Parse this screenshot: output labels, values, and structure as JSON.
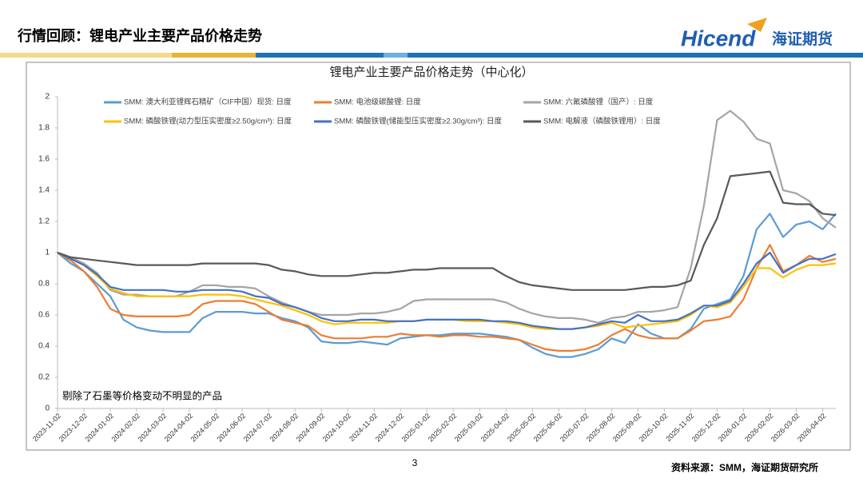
{
  "header": {
    "title": "行情回顾：锂电产业主要产品价格走势",
    "logo_text": "Hicend",
    "logo_cn": "海证期货"
  },
  "page_number": "3",
  "source": "资料来源：SMM，海证期货研究所",
  "chart_data": {
    "type": "line",
    "title": "锂电产业主要产品价格走势（中心化）",
    "annotation": "剔除了石墨等价格变动不明显的产品",
    "categories": [
      "2023-11-02",
      null,
      "2023-12-02",
      null,
      "2024-01-02",
      null,
      "2024-02-02",
      null,
      "2024-03-02",
      null,
      "2024-04-02",
      null,
      "2024-05-02",
      null,
      "2024-06-02",
      null,
      "2024-07-02",
      null,
      "2024-08-02",
      null,
      "2024-09-02",
      null,
      "2024-10-02",
      null,
      "2024-11-02",
      null,
      "2024-12-02",
      null,
      "2025-01-02",
      null,
      "2025-02-02",
      null,
      "2025-03-02",
      null,
      "2025-04-02",
      null,
      "2025-05-02",
      null,
      "2025-06-02",
      null,
      "2025-07-02",
      null,
      "2025-08-02",
      null,
      "2025-09-02",
      null,
      "2025-10-02",
      null,
      "2025-11-02",
      null,
      "2025-12-02",
      null,
      "2026-01-02",
      null,
      "2026-02-02",
      null,
      "2026-03-02",
      null,
      "2026-04-02",
      null
    ],
    "ylim": [
      0,
      2
    ],
    "yticks": [
      0,
      0.2,
      0.4,
      0.6,
      0.8,
      1,
      1.2,
      1.4,
      1.6,
      1.8,
      2
    ],
    "grid": false,
    "series": [
      {
        "name": "SMM: 澳大利亚锂辉石精矿（CIF中国）现货: 日度",
        "color": "#5b9bd5",
        "values": [
          1.0,
          0.93,
          0.88,
          0.8,
          0.72,
          0.57,
          0.52,
          0.5,
          0.49,
          0.49,
          0.49,
          0.58,
          0.62,
          0.62,
          0.62,
          0.61,
          0.61,
          0.58,
          0.56,
          0.52,
          0.43,
          0.42,
          0.42,
          0.43,
          0.42,
          0.41,
          0.45,
          0.46,
          0.47,
          0.47,
          0.48,
          0.48,
          0.48,
          0.47,
          0.46,
          0.44,
          0.39,
          0.35,
          0.33,
          0.33,
          0.35,
          0.38,
          0.45,
          0.42,
          0.54,
          0.48,
          0.45,
          0.45,
          0.51,
          0.64,
          0.67,
          0.7,
          0.85,
          1.15,
          1.25,
          1.1,
          1.18,
          1.2,
          1.15,
          1.25
        ]
      },
      {
        "name": "SMM: 电池级碳酸锂: 日度",
        "color": "#ed7d31",
        "values": [
          1.0,
          0.95,
          0.88,
          0.78,
          0.64,
          0.6,
          0.59,
          0.59,
          0.59,
          0.59,
          0.6,
          0.67,
          0.69,
          0.69,
          0.69,
          0.67,
          0.62,
          0.57,
          0.55,
          0.53,
          0.47,
          0.45,
          0.45,
          0.45,
          0.46,
          0.46,
          0.48,
          0.47,
          0.47,
          0.46,
          0.47,
          0.47,
          0.46,
          0.46,
          0.45,
          0.44,
          0.41,
          0.38,
          0.37,
          0.37,
          0.38,
          0.41,
          0.47,
          0.51,
          0.47,
          0.45,
          0.45,
          0.45,
          0.5,
          0.56,
          0.57,
          0.59,
          0.7,
          0.9,
          1.05,
          0.88,
          0.92,
          0.98,
          0.94,
          0.96
        ]
      },
      {
        "name": "SMM: 六氟磷酸锂（国产）: 日度",
        "color": "#a5a5a5",
        "values": [
          1.0,
          0.97,
          0.93,
          0.87,
          0.76,
          0.73,
          0.73,
          0.72,
          0.72,
          0.72,
          0.75,
          0.79,
          0.79,
          0.78,
          0.78,
          0.77,
          0.72,
          0.68,
          0.65,
          0.62,
          0.6,
          0.6,
          0.6,
          0.61,
          0.61,
          0.62,
          0.64,
          0.69,
          0.7,
          0.7,
          0.7,
          0.7,
          0.7,
          0.7,
          0.68,
          0.64,
          0.61,
          0.59,
          0.58,
          0.58,
          0.57,
          0.55,
          0.58,
          0.59,
          0.62,
          0.62,
          0.63,
          0.65,
          0.9,
          1.3,
          1.85,
          1.91,
          1.84,
          1.73,
          1.7,
          1.4,
          1.38,
          1.33,
          1.22,
          1.16
        ]
      },
      {
        "name": "SMM: 磷酸铁锂(动力型压实密度≥2.50g/cm³): 日度",
        "color": "#ffc000",
        "values": [
          1.0,
          0.96,
          0.92,
          0.85,
          0.77,
          0.74,
          0.72,
          0.72,
          0.72,
          0.72,
          0.72,
          0.73,
          0.73,
          0.73,
          0.72,
          0.7,
          0.68,
          0.66,
          0.63,
          0.6,
          0.56,
          0.54,
          0.55,
          0.55,
          0.55,
          0.55,
          0.56,
          0.56,
          0.57,
          0.57,
          0.57,
          0.56,
          0.56,
          0.56,
          0.55,
          0.54,
          0.52,
          0.51,
          0.51,
          0.51,
          0.52,
          0.53,
          0.55,
          0.52,
          0.53,
          0.54,
          0.55,
          0.56,
          0.6,
          0.66,
          0.65,
          0.68,
          0.78,
          0.9,
          0.9,
          0.84,
          0.89,
          0.92,
          0.92,
          0.93
        ]
      },
      {
        "name": "SMM: 磷酸铁锂(储能型压实密度≥2.30g/cm³): 日度",
        "color": "#4472c4",
        "values": [
          1.0,
          0.96,
          0.92,
          0.86,
          0.78,
          0.76,
          0.76,
          0.76,
          0.76,
          0.75,
          0.75,
          0.76,
          0.76,
          0.76,
          0.75,
          0.72,
          0.71,
          0.67,
          0.65,
          0.62,
          0.58,
          0.56,
          0.56,
          0.57,
          0.57,
          0.56,
          0.56,
          0.56,
          0.57,
          0.57,
          0.57,
          0.57,
          0.57,
          0.56,
          0.56,
          0.55,
          0.53,
          0.52,
          0.51,
          0.51,
          0.52,
          0.54,
          0.56,
          0.55,
          0.6,
          0.56,
          0.56,
          0.57,
          0.61,
          0.66,
          0.66,
          0.69,
          0.8,
          0.93,
          1.0,
          0.87,
          0.92,
          0.96,
          0.96,
          0.99
        ]
      },
      {
        "name": "SMM: 电解液（磷酸铁锂用）: 日度",
        "color": "#595959",
        "values": [
          1.0,
          0.97,
          0.96,
          0.95,
          0.94,
          0.93,
          0.92,
          0.92,
          0.92,
          0.92,
          0.92,
          0.93,
          0.93,
          0.93,
          0.93,
          0.93,
          0.92,
          0.89,
          0.88,
          0.86,
          0.85,
          0.85,
          0.85,
          0.86,
          0.87,
          0.87,
          0.88,
          0.89,
          0.89,
          0.9,
          0.9,
          0.9,
          0.9,
          0.9,
          0.85,
          0.81,
          0.79,
          0.78,
          0.77,
          0.76,
          0.76,
          0.76,
          0.76,
          0.76,
          0.77,
          0.78,
          0.78,
          0.79,
          0.82,
          1.05,
          1.22,
          1.49,
          1.5,
          1.51,
          1.52,
          1.32,
          1.31,
          1.31,
          1.25,
          1.24
        ]
      }
    ]
  }
}
